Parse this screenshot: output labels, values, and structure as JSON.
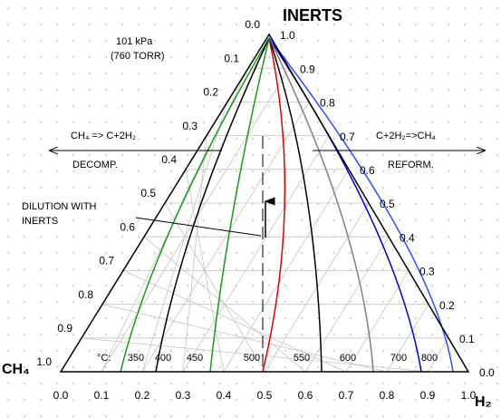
{
  "title": "INERTS",
  "pressure": [
    "101 kPa",
    "(760 TORR)"
  ],
  "corners": {
    "left": "CH₄",
    "right": "H₂"
  },
  "bottom_ticks": [
    "0.0",
    "0.1",
    "0.2",
    "0.3",
    "0.4",
    "0.5",
    "0.6",
    "0.7",
    "0.8",
    "0.9",
    "1.0"
  ],
  "left_ticks": [
    "0.0",
    "0.1",
    "0.2",
    "0.3",
    "0.4",
    "0.5",
    "0.6",
    "0.7",
    "0.8",
    "0.9",
    "1.0"
  ],
  "right_ticks": [
    "0.0",
    "0.1",
    "0.2",
    "0.3",
    "0.4",
    "0.5",
    "0.6",
    "0.7",
    "0.8",
    "0.9",
    "1.0"
  ],
  "isotherm_unit": "°C:",
  "isotherms": [
    {
      "label": "350",
      "color": "#1a9a1a"
    },
    {
      "label": "400",
      "color": "#000000"
    },
    {
      "label": "450",
      "color": "#1a9a1a"
    },
    {
      "label": "500",
      "color": "#e00000"
    },
    {
      "label": "550",
      "color": "#000000"
    },
    {
      "label": "600",
      "color": "#808080"
    },
    {
      "label": "700",
      "color": "#0000cc"
    },
    {
      "label": "800",
      "color": "#3050ff"
    }
  ],
  "annotation": [
    "DILUTION WITH",
    "INERTS"
  ],
  "left_arrow": {
    "top": "CH₄ => C+2H₂",
    "bottom": "DECOMP."
  },
  "right_arrow": {
    "top": "C+2H₂=>CH₄",
    "bottom": "REFORM."
  }
}
